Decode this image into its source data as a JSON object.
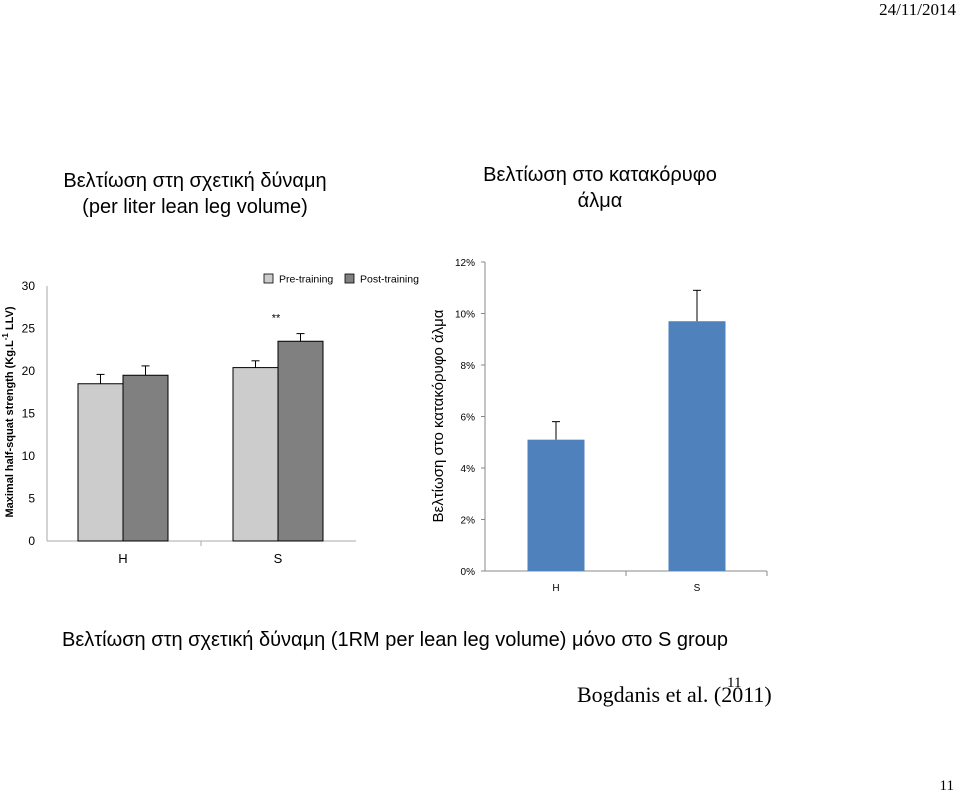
{
  "header": {
    "date": "24/11/2014"
  },
  "left_title": {
    "line1": "Βελτίωση στη σχετική δύναμη",
    "line2": "(per liter lean leg volume)"
  },
  "right_title": {
    "line1": "Βελτίωση στο κατακόρυφο",
    "line2": "άλμα"
  },
  "caption": "Βελτίωση στη σχετική δύναμη (1RM per lean leg volume) μόνο στο S group",
  "citation": "Bogdanis et al. (2011)",
  "slide_number_overlay": "11",
  "page_number": "11",
  "colors": {
    "pre": "#cccccc",
    "post": "#808080",
    "blue": "#4f81bd"
  },
  "chart_data": [
    {
      "type": "bar",
      "title": "Βελτίωση στη σχετική δύναμη (per liter lean leg volume)",
      "categories": [
        "H",
        "S"
      ],
      "series": [
        {
          "name": "Pre-training",
          "values": [
            18.5,
            20.4
          ],
          "errors": [
            1.1,
            0.8
          ]
        },
        {
          "name": "Post-training",
          "values": [
            19.5,
            23.5
          ],
          "errors": [
            1.1,
            0.9
          ]
        }
      ],
      "ylabel_main": "Maximal half-squat strength (Kg.L",
      "ylabel_sup": "-1",
      "ylabel_end": " LLV)",
      "ylim": [
        0,
        30
      ],
      "yticks": [
        "0",
        "5",
        "10",
        "15",
        "20",
        "25",
        "30"
      ],
      "annotation": "**",
      "legend_placement": "top-right"
    },
    {
      "type": "bar",
      "title": "Βελτίωση στο κατακόρυφο άλμα",
      "categories": [
        "H",
        "S"
      ],
      "values": [
        5.1,
        9.7
      ],
      "errors": [
        0.7,
        1.2
      ],
      "ylabel": "Βελτίωση στο κατακόρυφο άλμα",
      "ylim": [
        0,
        12
      ],
      "yticks": [
        "0%",
        "2%",
        "4%",
        "6%",
        "8%",
        "10%",
        "12%"
      ]
    }
  ]
}
